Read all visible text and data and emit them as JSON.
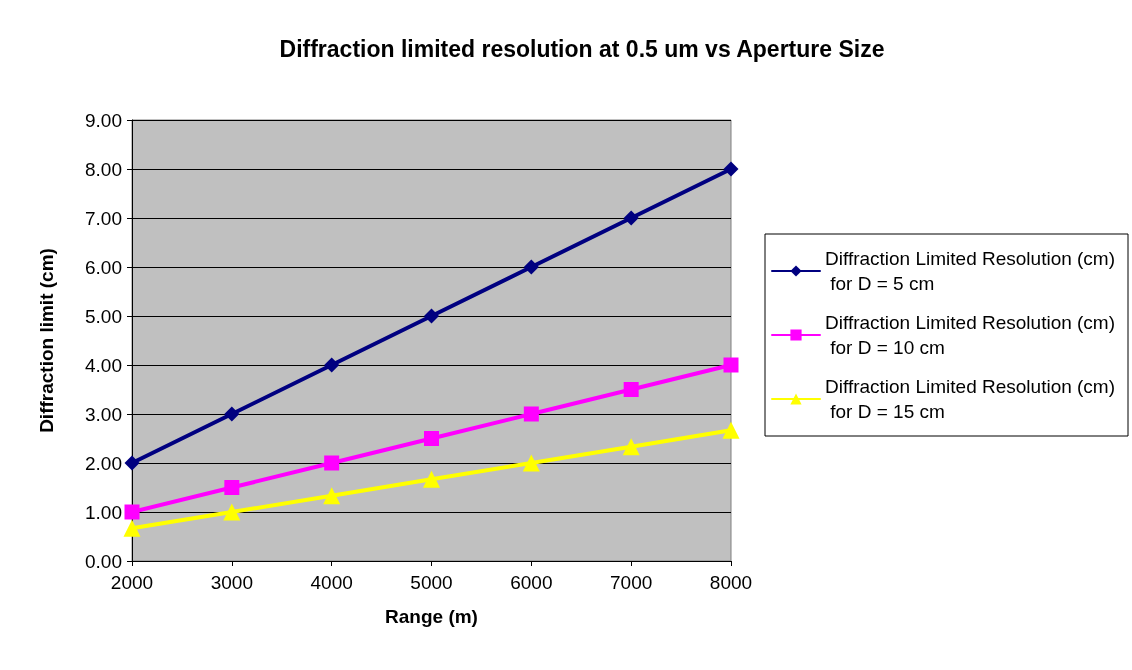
{
  "chart_data": {
    "type": "line",
    "title": "Diffraction limited resolution at 0.5 um vs Aperture Size",
    "xlabel": "Range (m)",
    "ylabel": "Diffraction limit (cm)",
    "x": [
      2000,
      3000,
      4000,
      5000,
      6000,
      7000,
      8000
    ],
    "series": [
      {
        "name": "Diffraction Limited Resolution (cm) for D = 5 cm",
        "color": "#000080",
        "marker": "diamond",
        "values": [
          2,
          3,
          4,
          5,
          6,
          7,
          8
        ]
      },
      {
        "name": "Diffraction Limited Resolution (cm) for D = 10 cm",
        "color": "#ff00ff",
        "marker": "square",
        "values": [
          1,
          1.5,
          2,
          2.5,
          3,
          3.5,
          4
        ]
      },
      {
        "name": "Diffraction Limited Resolution (cm) for D = 15 cm",
        "color": "#ffff00",
        "marker": "triangle",
        "values": [
          0.67,
          1,
          1.33,
          1.67,
          2,
          2.33,
          2.67
        ]
      }
    ],
    "xlim": [
      2000,
      8000
    ],
    "xticks": [
      2000,
      3000,
      4000,
      5000,
      6000,
      7000,
      8000
    ],
    "ylim": [
      0,
      9
    ],
    "yticks": [
      {
        "value": 0,
        "label": "0.00"
      },
      {
        "value": 1,
        "label": "1.00"
      },
      {
        "value": 2,
        "label": "2.00"
      },
      {
        "value": 3,
        "label": "3.00"
      },
      {
        "value": 4,
        "label": "4.00"
      },
      {
        "value": 5,
        "label": "5.00"
      },
      {
        "value": 6,
        "label": "6.00"
      },
      {
        "value": 7,
        "label": "7.00"
      },
      {
        "value": 8,
        "label": "8.00"
      },
      {
        "value": 9,
        "label": "9.00"
      }
    ],
    "grid": "y",
    "legend": "right",
    "line_style": "solid"
  }
}
